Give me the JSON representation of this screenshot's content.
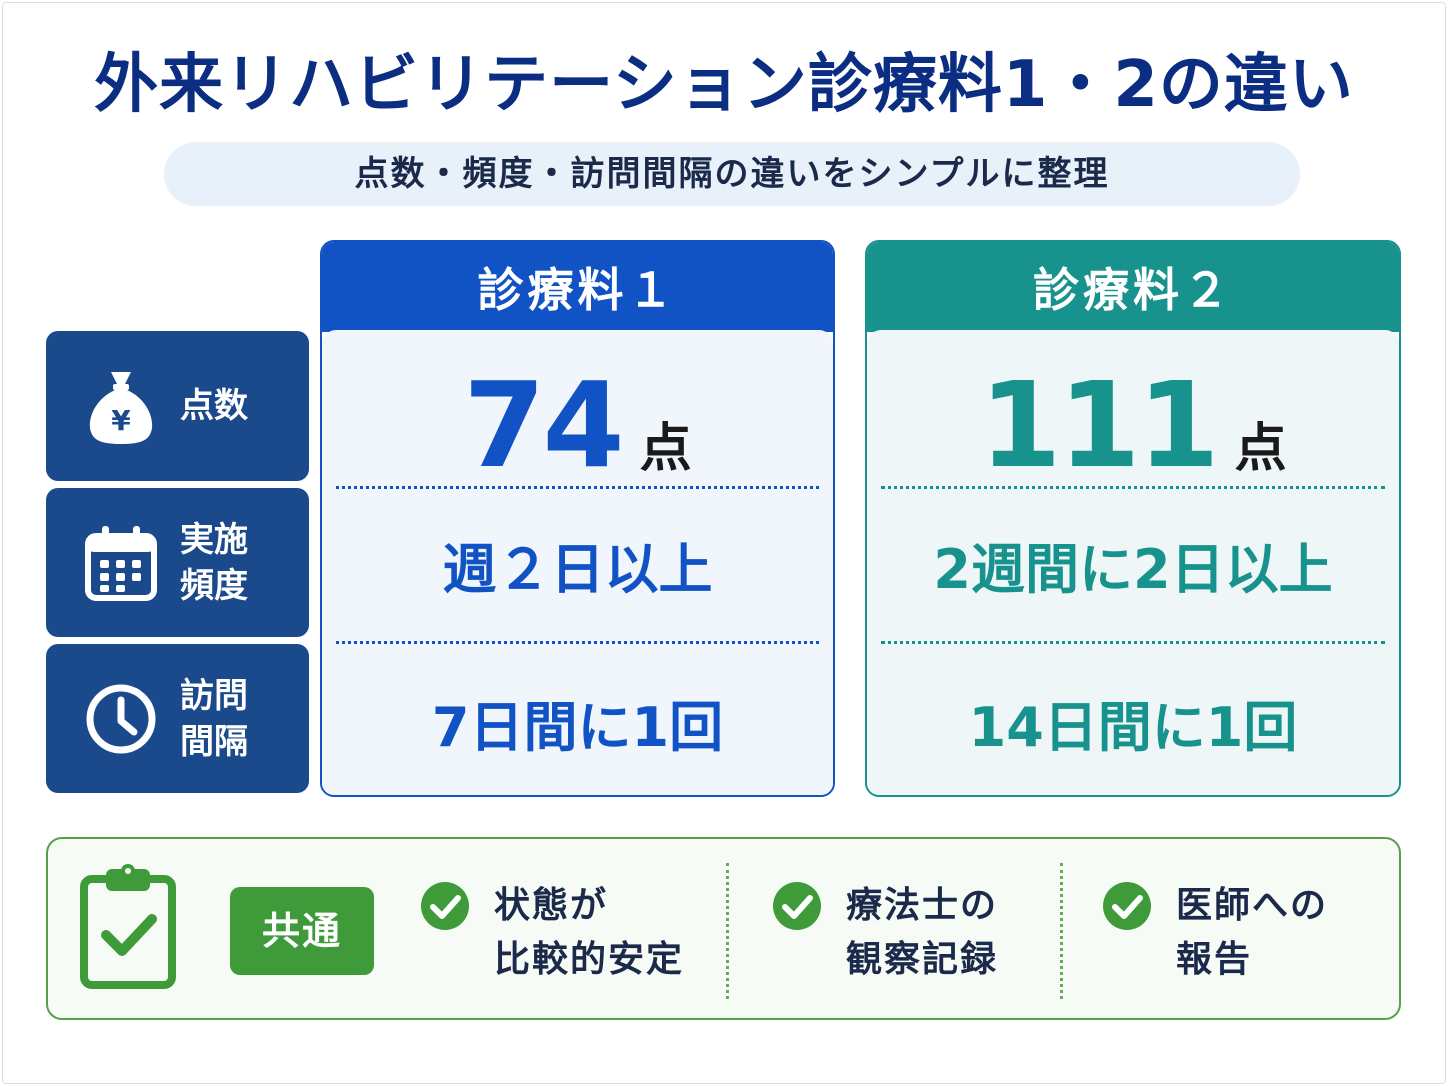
{
  "title": "外来リハビリテーション診療料1・2の違い",
  "subtitle": "点数・頻度・訪問間隔の違いをシンプルに整理",
  "rows": [
    {
      "icon": "yen-money-bag-icon",
      "label_lines": [
        "点数"
      ]
    },
    {
      "icon": "calendar-icon",
      "label_lines": [
        "実施",
        "頻度"
      ]
    },
    {
      "icon": "clock-icon",
      "label_lines": [
        "訪問",
        "間隔"
      ]
    }
  ],
  "columns": [
    {
      "header": "診療料１",
      "points": "74",
      "points_unit": "点",
      "frequency": "週２日以上",
      "interval": "7日間に1回",
      "color": "#1153c4"
    },
    {
      "header": "診療料２",
      "points": "111",
      "points_unit": "点",
      "frequency": "2週間に2日以上",
      "interval": "14日間に1回",
      "color": "#17928d"
    }
  ],
  "common": {
    "icon": "clipboard-check-icon",
    "badge": "共通",
    "items": [
      {
        "icon": "check-circle-icon",
        "lines": [
          "状態が",
          "比較的安定"
        ]
      },
      {
        "icon": "check-circle-icon",
        "lines": [
          "療法士の",
          "観察記録"
        ]
      },
      {
        "icon": "check-circle-icon",
        "lines": [
          "医師への",
          "報告"
        ]
      }
    ],
    "color": "#3f9a3a"
  }
}
